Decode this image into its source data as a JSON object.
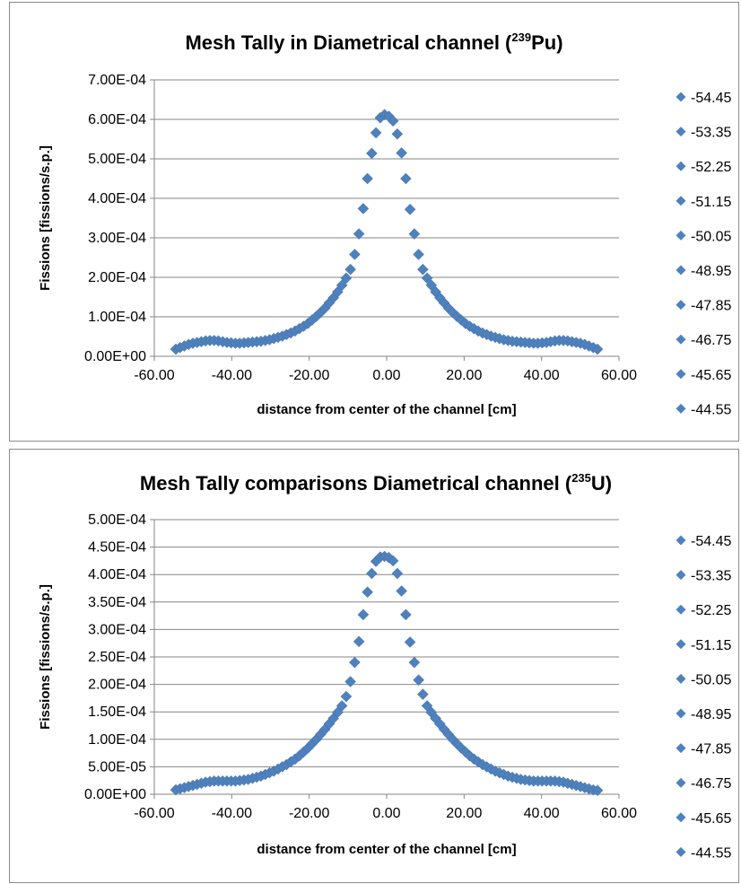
{
  "chart_data": [
    {
      "type": "scatter",
      "title_main": "Mesh Tally  in Diametrical channel (",
      "title_sup": "239",
      "title_end": "Pu)",
      "xlabel": "distance from center of the channel [cm]",
      "ylabel": "Fissions [fissions/s.p.]",
      "xlim": [
        -60,
        60
      ],
      "ylim": [
        0,
        0.0007
      ],
      "x_ticks": [
        "-60.00",
        "-40.00",
        "-20.00",
        "0.00",
        "20.00",
        "40.00",
        "60.00"
      ],
      "y_ticks": [
        "0.00E+00",
        "1.00E-04",
        "2.00E-04",
        "3.00E-04",
        "4.00E-04",
        "5.00E-04",
        "6.00E-04",
        "7.00E-04"
      ],
      "grid": "horizontal",
      "legend_position": "right",
      "legend": [
        "-54.45",
        "-53.35",
        "-52.25",
        "-51.15",
        "-50.05",
        "-48.95",
        "-47.85",
        "-46.75",
        "-45.65",
        "-44.55"
      ],
      "marker_color": "#4f81bd",
      "series": [
        {
          "x": [
            -54.45,
            -53.35,
            -52.25,
            -51.15,
            -50.05,
            -48.95,
            -47.85,
            -46.75,
            -45.65,
            -44.55,
            -43.45,
            -42.35,
            -41.25,
            -40.15,
            -39.05,
            -37.95,
            -36.85,
            -35.75,
            -34.65,
            -33.55,
            -32.45,
            -31.35,
            -30.25,
            -29.15,
            -28.05,
            -26.95,
            -25.85,
            -24.75,
            -23.65,
            -22.55,
            -21.45,
            -20.35,
            -19.25,
            -18.15,
            -17.05,
            -15.95,
            -14.85,
            -13.75,
            -12.65,
            -11.55,
            -10.45,
            -9.35,
            -8.25,
            -7.15,
            -6.05,
            -4.95,
            -3.85,
            -2.75,
            -1.65,
            -0.55,
            0.55,
            1.65,
            2.75,
            3.85,
            4.95,
            6.05,
            7.15,
            8.25,
            9.35,
            10.45,
            11.55,
            12.65,
            13.75,
            14.85,
            15.95,
            17.05,
            18.15,
            19.25,
            20.35,
            21.45,
            22.55,
            23.65,
            24.75,
            25.85,
            26.95,
            28.05,
            29.15,
            30.25,
            31.35,
            32.45,
            33.55,
            34.65,
            35.75,
            36.85,
            37.95,
            39.05,
            40.15,
            41.25,
            42.35,
            43.45,
            44.55,
            45.65,
            46.75,
            47.85,
            48.95,
            50.05,
            51.15,
            52.25,
            53.35,
            54.45
          ],
          "y": [
            1.8e-05,
            2.2e-05,
            2.6e-05,
            3e-05,
            3.3e-05,
            3.5e-05,
            3.7e-05,
            3.9e-05,
            4e-05,
            4e-05,
            3.9e-05,
            3.7e-05,
            3.5e-05,
            3.4e-05,
            3.3e-05,
            3.3e-05,
            3.4e-05,
            3.5e-05,
            3.6e-05,
            3.7e-05,
            3.8e-05,
            4e-05,
            4.2e-05,
            4.5e-05,
            4.8e-05,
            5.1e-05,
            5.5e-05,
            5.9e-05,
            6.4e-05,
            7e-05,
            7.6e-05,
            8.3e-05,
            9.2e-05,
            0.000101,
            0.000111,
            0.000122,
            0.000135,
            0.000148,
            0.000163,
            0.00018,
            0.000198,
            0.00022,
            0.000258,
            0.00031,
            0.000374,
            0.00045,
            0.000514,
            0.000566,
            0.000604,
            0.000612,
            0.000608,
            0.000596,
            0.000563,
            0.000515,
            0.00045,
            0.000372,
            0.00031,
            0.000258,
            0.00022,
            0.000198,
            0.00018,
            0.000163,
            0.000148,
            0.000135,
            0.000122,
            0.000111,
            0.000101,
            9.2e-05,
            8.3e-05,
            7.6e-05,
            7e-05,
            6.4e-05,
            5.9e-05,
            5.5e-05,
            5.1e-05,
            4.8e-05,
            4.5e-05,
            4.2e-05,
            4e-05,
            3.8e-05,
            3.7e-05,
            3.6e-05,
            3.5e-05,
            3.4e-05,
            3.3e-05,
            3.3e-05,
            3.4e-05,
            3.5e-05,
            3.7e-05,
            3.9e-05,
            4e-05,
            4e-05,
            3.9e-05,
            3.7e-05,
            3.5e-05,
            3.3e-05,
            3e-05,
            2.6e-05,
            2.2e-05,
            1.8e-05
          ]
        }
      ]
    },
    {
      "type": "scatter",
      "title_main": "Mesh Tally comparisons  Diametrical channel (",
      "title_sup": "235",
      "title_end": "U)",
      "xlabel": "distance from center of the channel [cm]",
      "ylabel": "Fissions [fissions/s.p.]",
      "xlim": [
        -60,
        60
      ],
      "ylim": [
        0,
        0.0005
      ],
      "x_ticks": [
        "-60.00",
        "-40.00",
        "-20.00",
        "0.00",
        "20.00",
        "40.00",
        "60.00"
      ],
      "y_ticks": [
        "0.00E+00",
        "5.00E-05",
        "1.00E-04",
        "1.50E-04",
        "2.00E-04",
        "2.50E-04",
        "3.00E-04",
        "3.50E-04",
        "4.00E-04",
        "4.50E-04",
        "5.00E-04"
      ],
      "grid": "horizontal",
      "legend_position": "right",
      "legend": [
        "-54.45",
        "-53.35",
        "-52.25",
        "-51.15",
        "-50.05",
        "-48.95",
        "-47.85",
        "-46.75",
        "-45.65",
        "-44.55"
      ],
      "marker_color": "#4f81bd",
      "series": [
        {
          "x": [
            -54.45,
            -53.35,
            -52.25,
            -51.15,
            -50.05,
            -48.95,
            -47.85,
            -46.75,
            -45.65,
            -44.55,
            -43.45,
            -42.35,
            -41.25,
            -40.15,
            -39.05,
            -37.95,
            -36.85,
            -35.75,
            -34.65,
            -33.55,
            -32.45,
            -31.35,
            -30.25,
            -29.15,
            -28.05,
            -26.95,
            -25.85,
            -24.75,
            -23.65,
            -22.55,
            -21.45,
            -20.35,
            -19.25,
            -18.15,
            -17.05,
            -15.95,
            -14.85,
            -13.75,
            -12.65,
            -11.55,
            -10.45,
            -9.35,
            -8.25,
            -7.15,
            -6.05,
            -4.95,
            -3.85,
            -2.75,
            -1.65,
            -0.55,
            0.55,
            1.65,
            2.75,
            3.85,
            4.95,
            6.05,
            7.15,
            8.25,
            9.35,
            10.45,
            11.55,
            12.65,
            13.75,
            14.85,
            15.95,
            17.05,
            18.15,
            19.25,
            20.35,
            21.45,
            22.55,
            23.65,
            24.75,
            25.85,
            26.95,
            28.05,
            29.15,
            30.25,
            31.35,
            32.45,
            33.55,
            34.65,
            35.75,
            36.85,
            37.95,
            39.05,
            40.15,
            41.25,
            42.35,
            43.45,
            44.55,
            45.65,
            46.75,
            47.85,
            48.95,
            50.05,
            51.15,
            52.25,
            53.35,
            54.45
          ],
          "y": [
            8e-06,
            1e-05,
            1.2e-05,
            1.4e-05,
            1.6e-05,
            1.8e-05,
            2e-05,
            2.2e-05,
            2.3e-05,
            2.4e-05,
            2.4e-05,
            2.4e-05,
            2.4e-05,
            2.4e-05,
            2.4e-05,
            2.5e-05,
            2.6e-05,
            2.7e-05,
            2.9e-05,
            3.1e-05,
            3.3e-05,
            3.6e-05,
            3.9e-05,
            4.2e-05,
            4.6e-05,
            5e-05,
            5.4e-05,
            5.9e-05,
            6.4e-05,
            7e-05,
            7.7e-05,
            8.4e-05,
            9.2e-05,
            0.0001,
            0.000109,
            0.000118,
            0.000128,
            0.000138,
            0.000149,
            0.000161,
            0.000178,
            0.000205,
            0.00024,
            0.000278,
            0.000327,
            0.000368,
            0.000402,
            0.000424,
            0.000432,
            0.000433,
            0.000431,
            0.000425,
            0.000402,
            0.00037,
            0.000327,
            0.000277,
            0.00024,
            0.000208,
            0.000182,
            0.000161,
            0.000149,
            0.000138,
            0.000128,
            0.000118,
            0.000109,
            0.0001,
            9.2e-05,
            8.4e-05,
            7.7e-05,
            7e-05,
            6.4e-05,
            5.9e-05,
            5.4e-05,
            5e-05,
            4.6e-05,
            4.2e-05,
            3.9e-05,
            3.6e-05,
            3.3e-05,
            3.1e-05,
            2.9e-05,
            2.7e-05,
            2.6e-05,
            2.5e-05,
            2.4e-05,
            2.4e-05,
            2.4e-05,
            2.4e-05,
            2.4e-05,
            2.4e-05,
            2.3e-05,
            2.2e-05,
            2e-05,
            1.8e-05,
            1.6e-05,
            1.4e-05,
            1.2e-05,
            1e-05,
            8e-06,
            7e-06
          ]
        }
      ]
    }
  ]
}
